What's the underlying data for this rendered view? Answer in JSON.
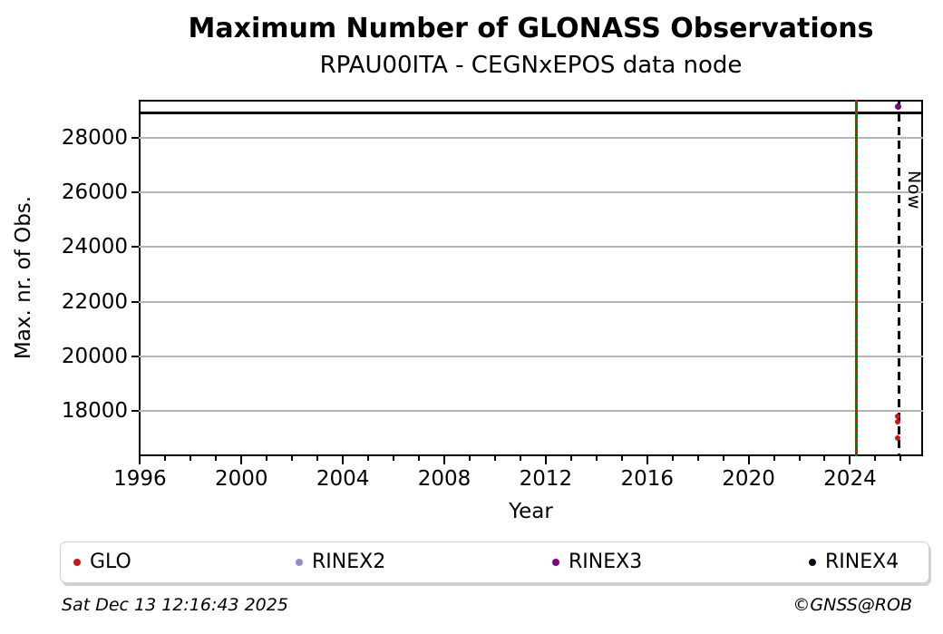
{
  "chart_data": {
    "type": "scatter",
    "title": "Maximum Number of GLONASS Observations",
    "subtitle": "RPAU00ITA - CEGNxEPOS data node",
    "xlabel": "Year",
    "ylabel": "Max. nr. of Obs.",
    "xlim": [
      1995.95,
      2026.88
    ],
    "ylim": [
      16350,
      29380
    ],
    "x_major_ticks": [
      1996,
      2000,
      2004,
      2008,
      2012,
      2016,
      2020,
      2024
    ],
    "x_minor_tick_step": 1,
    "y_ticks": [
      18000,
      20000,
      22000,
      24000,
      26000,
      28000
    ],
    "grid": {
      "horizontal": true,
      "vertical": false,
      "color": "#b4b4b4"
    },
    "series": [
      {
        "name": "GLO",
        "color": "#cc1414",
        "marker": "dot",
        "points": [
          {
            "x": 2025.88,
            "y": 17820
          },
          {
            "x": 2025.88,
            "y": 17620
          },
          {
            "x": 2025.88,
            "y": 17020
          }
        ]
      },
      {
        "name": "RINEX2",
        "color": "#8f8fcc",
        "marker": "dot",
        "points": []
      },
      {
        "name": "RINEX3",
        "color": "#800080",
        "marker": "dot",
        "points": [
          {
            "x": 2025.88,
            "y": 29130
          }
        ]
      },
      {
        "name": "RINEX4",
        "color": "#1a031a",
        "marker": "dot",
        "points": []
      }
    ],
    "annotations": {
      "max_obs_hline": {
        "y": 28900,
        "color": "#000000",
        "style": "solid"
      },
      "event_vline_green": {
        "x": 2024.24,
        "color": "#008000",
        "style": "solid"
      },
      "event_vline_red": {
        "x": 2024.24,
        "color": "#dd1111",
        "style": "dashed"
      },
      "now_vline": {
        "x": 2025.95,
        "color": "#000000",
        "style": "dashed",
        "label": "Now"
      }
    },
    "legend": {
      "position": "bottom",
      "entries": [
        {
          "label": "GLO",
          "color": "#cc1414"
        },
        {
          "label": "RINEX2",
          "color": "#8f8fcc"
        },
        {
          "label": "RINEX3",
          "color": "#800080"
        },
        {
          "label": "RINEX4",
          "color": "#1a031a"
        }
      ]
    }
  },
  "footer": {
    "timestamp": "Sat Dec 13 12:16:43 2025",
    "credit": "©GNSS@ROB"
  }
}
